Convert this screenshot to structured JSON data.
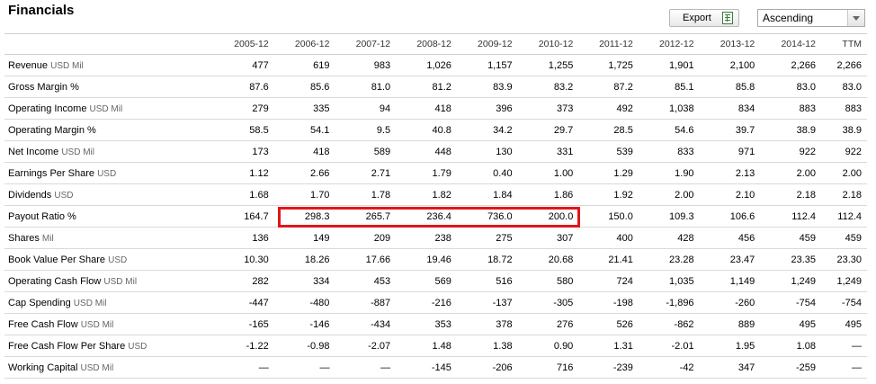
{
  "header": {
    "title": "Financials"
  },
  "toolbar": {
    "export_label": "Export",
    "sort_value": "Ascending"
  },
  "columns": [
    "2005-12",
    "2006-12",
    "2007-12",
    "2008-12",
    "2009-12",
    "2010-12",
    "2011-12",
    "2012-12",
    "2013-12",
    "2014-12",
    "TTM"
  ],
  "rows": [
    {
      "label": "Revenue",
      "unit": "USD Mil",
      "values": [
        "477",
        "619",
        "983",
        "1,026",
        "1,157",
        "1,255",
        "1,725",
        "1,901",
        "2,100",
        "2,266",
        "2,266"
      ]
    },
    {
      "label": "Gross Margin %",
      "unit": "",
      "values": [
        "87.6",
        "85.6",
        "81.0",
        "81.2",
        "83.9",
        "83.2",
        "87.2",
        "85.1",
        "85.8",
        "83.0",
        "83.0"
      ]
    },
    {
      "label": "Operating Income",
      "unit": "USD Mil",
      "values": [
        "279",
        "335",
        "94",
        "418",
        "396",
        "373",
        "492",
        "1,038",
        "834",
        "883",
        "883"
      ]
    },
    {
      "label": "Operating Margin %",
      "unit": "",
      "values": [
        "58.5",
        "54.1",
        "9.5",
        "40.8",
        "34.2",
        "29.7",
        "28.5",
        "54.6",
        "39.7",
        "38.9",
        "38.9"
      ]
    },
    {
      "label": "Net Income",
      "unit": "USD Mil",
      "values": [
        "173",
        "418",
        "589",
        "448",
        "130",
        "331",
        "539",
        "833",
        "971",
        "922",
        "922"
      ]
    },
    {
      "label": "Earnings Per Share",
      "unit": "USD",
      "values": [
        "1.12",
        "2.66",
        "2.71",
        "1.79",
        "0.40",
        "1.00",
        "1.29",
        "1.90",
        "2.13",
        "2.00",
        "2.00"
      ]
    },
    {
      "label": "Dividends",
      "unit": "USD",
      "values": [
        "1.68",
        "1.70",
        "1.78",
        "1.82",
        "1.84",
        "1.86",
        "1.92",
        "2.00",
        "2.10",
        "2.18",
        "2.18"
      ]
    },
    {
      "label": "Payout Ratio %",
      "unit": "",
      "values": [
        "164.7",
        "298.3",
        "265.7",
        "236.4",
        "736.0",
        "200.0",
        "150.0",
        "109.3",
        "106.6",
        "112.4",
        "112.4"
      ]
    },
    {
      "label": "Shares",
      "unit": "Mil",
      "values": [
        "136",
        "149",
        "209",
        "238",
        "275",
        "307",
        "400",
        "428",
        "456",
        "459",
        "459"
      ]
    },
    {
      "label": "Book Value Per Share",
      "unit": "USD",
      "values": [
        "10.30",
        "18.26",
        "17.66",
        "19.46",
        "18.72",
        "20.68",
        "21.41",
        "23.28",
        "23.47",
        "23.35",
        "23.30"
      ]
    },
    {
      "label": "Operating Cash Flow",
      "unit": "USD Mil",
      "values": [
        "282",
        "334",
        "453",
        "569",
        "516",
        "580",
        "724",
        "1,035",
        "1,149",
        "1,249",
        "1,249"
      ]
    },
    {
      "label": "Cap Spending",
      "unit": "USD Mil",
      "values": [
        "-447",
        "-480",
        "-887",
        "-216",
        "-137",
        "-305",
        "-198",
        "-1,896",
        "-260",
        "-754",
        "-754"
      ]
    },
    {
      "label": "Free Cash Flow",
      "unit": "USD Mil",
      "values": [
        "-165",
        "-146",
        "-434",
        "353",
        "378",
        "276",
        "526",
        "-862",
        "889",
        "495",
        "495"
      ]
    },
    {
      "label": "Free Cash Flow Per Share",
      "unit": "USD",
      "values": [
        "-1.22",
        "-0.98",
        "-2.07",
        "1.48",
        "1.38",
        "0.90",
        "1.31",
        "-2.01",
        "1.95",
        "1.08",
        "—"
      ]
    },
    {
      "label": "Working Capital",
      "unit": "USD Mil",
      "values": [
        "—",
        "—",
        "—",
        "-145",
        "-206",
        "716",
        "-239",
        "-42",
        "347",
        "-259",
        "—"
      ]
    }
  ],
  "highlight": {
    "row": "Payout Ratio %",
    "from": "2006-12",
    "to": "2010-12",
    "color": "#e0151b"
  }
}
